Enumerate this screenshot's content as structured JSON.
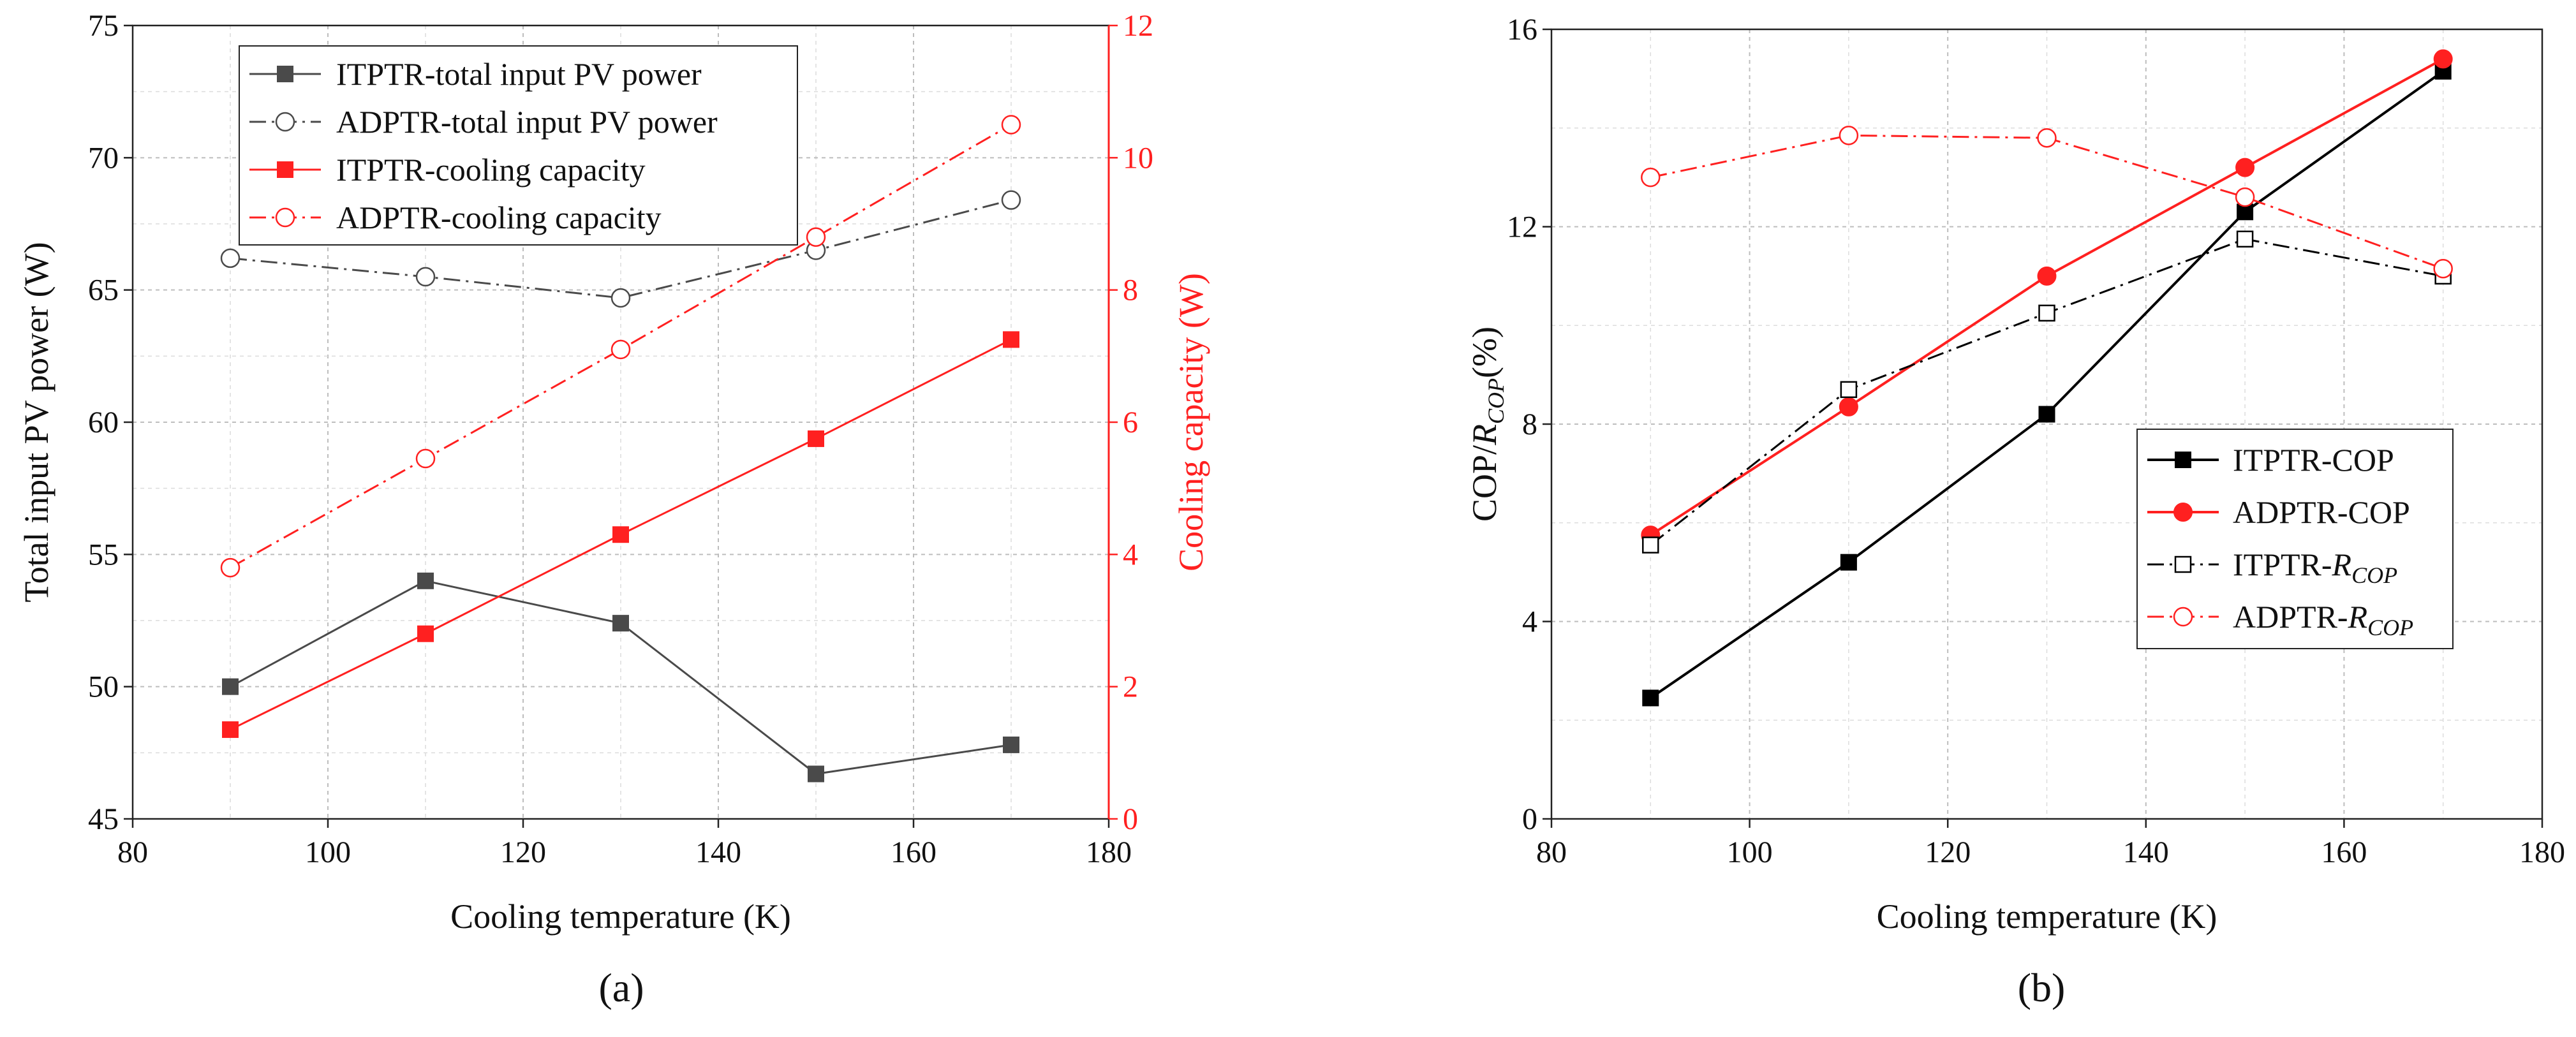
{
  "chart_data": [
    {
      "type": "line",
      "panel_label": "(a)",
      "xlabel": "Cooling temperature (K)",
      "ylabel": "Total input PV power (W)",
      "y2label": "Cooling capacity (W)",
      "xlim": [
        80,
        180
      ],
      "xticks": [
        80,
        100,
        120,
        140,
        160,
        180
      ],
      "ylim": [
        45,
        75
      ],
      "yticks": [
        45,
        50,
        55,
        60,
        65,
        70,
        75
      ],
      "y2lim": [
        0,
        12
      ],
      "y2ticks": [
        0,
        2,
        4,
        6,
        8,
        10,
        12
      ],
      "grid": true,
      "legend_position": "top-left",
      "x": [
        90,
        110,
        130,
        150,
        170
      ],
      "series": [
        {
          "name": "ITPTR-total input PV power",
          "axis": "left",
          "values": [
            50.0,
            54.0,
            52.4,
            46.7,
            47.8
          ],
          "color": "#4a4a4a",
          "marker": "filled-square",
          "dash": "solid"
        },
        {
          "name": "ADPTR-total input PV power",
          "axis": "left",
          "values": [
            66.2,
            65.5,
            64.7,
            66.5,
            68.4
          ],
          "color": "#4a4a4a",
          "marker": "open-circle",
          "dash": "dash-dot"
        },
        {
          "name": "ITPTR-cooling capacity",
          "axis": "right",
          "values": [
            1.35,
            2.8,
            4.3,
            5.75,
            7.25
          ],
          "color": "#ff2020",
          "marker": "filled-square",
          "dash": "solid"
        },
        {
          "name": "ADPTR-cooling capacity",
          "axis": "right",
          "values": [
            3.8,
            5.45,
            7.1,
            8.8,
            10.5
          ],
          "color": "#ff2020",
          "marker": "open-circle",
          "dash": "dash-dot"
        }
      ]
    },
    {
      "type": "line",
      "panel_label": "(b)",
      "xlabel": "Cooling temperature (K)",
      "ylabel_main": "COP/",
      "ylabel_italic": "R",
      "ylabel_sub": "COP",
      "ylabel_tail": "(%)",
      "xlim": [
        80,
        180
      ],
      "xticks": [
        80,
        100,
        120,
        140,
        160,
        180
      ],
      "ylim": [
        0,
        16
      ],
      "yticks": [
        0,
        4,
        8,
        12,
        16
      ],
      "grid": true,
      "legend_position": "center-right",
      "x": [
        90,
        110,
        130,
        150,
        170
      ],
      "series": [
        {
          "name": "ITPTR-COP",
          "label_main": "ITPTR-COP",
          "label_italic": "",
          "label_sub": "",
          "values": [
            2.45,
            5.2,
            8.2,
            12.3,
            15.15
          ],
          "color": "#000000",
          "marker": "filled-square",
          "dash": "solid"
        },
        {
          "name": "ADPTR-COP",
          "label_main": "ADPTR-COP",
          "label_italic": "",
          "label_sub": "",
          "values": [
            5.75,
            8.35,
            11.0,
            13.2,
            15.4
          ],
          "color": "#ff2020",
          "marker": "filled-circle",
          "dash": "solid"
        },
        {
          "name": "ITPTR-RCOP",
          "label_main": "ITPTR-",
          "label_italic": "R",
          "label_sub": "COP",
          "values": [
            5.55,
            8.7,
            10.25,
            11.75,
            11.0
          ],
          "color": "#000000",
          "marker": "open-square",
          "dash": "dash-dot"
        },
        {
          "name": "ADPTR-RCOP",
          "label_main": "ADPTR-",
          "label_italic": "R",
          "label_sub": "COP",
          "values": [
            13.0,
            13.85,
            13.8,
            12.6,
            11.15
          ],
          "color": "#ff2020",
          "marker": "open-circle",
          "dash": "dash-dot"
        }
      ]
    }
  ]
}
